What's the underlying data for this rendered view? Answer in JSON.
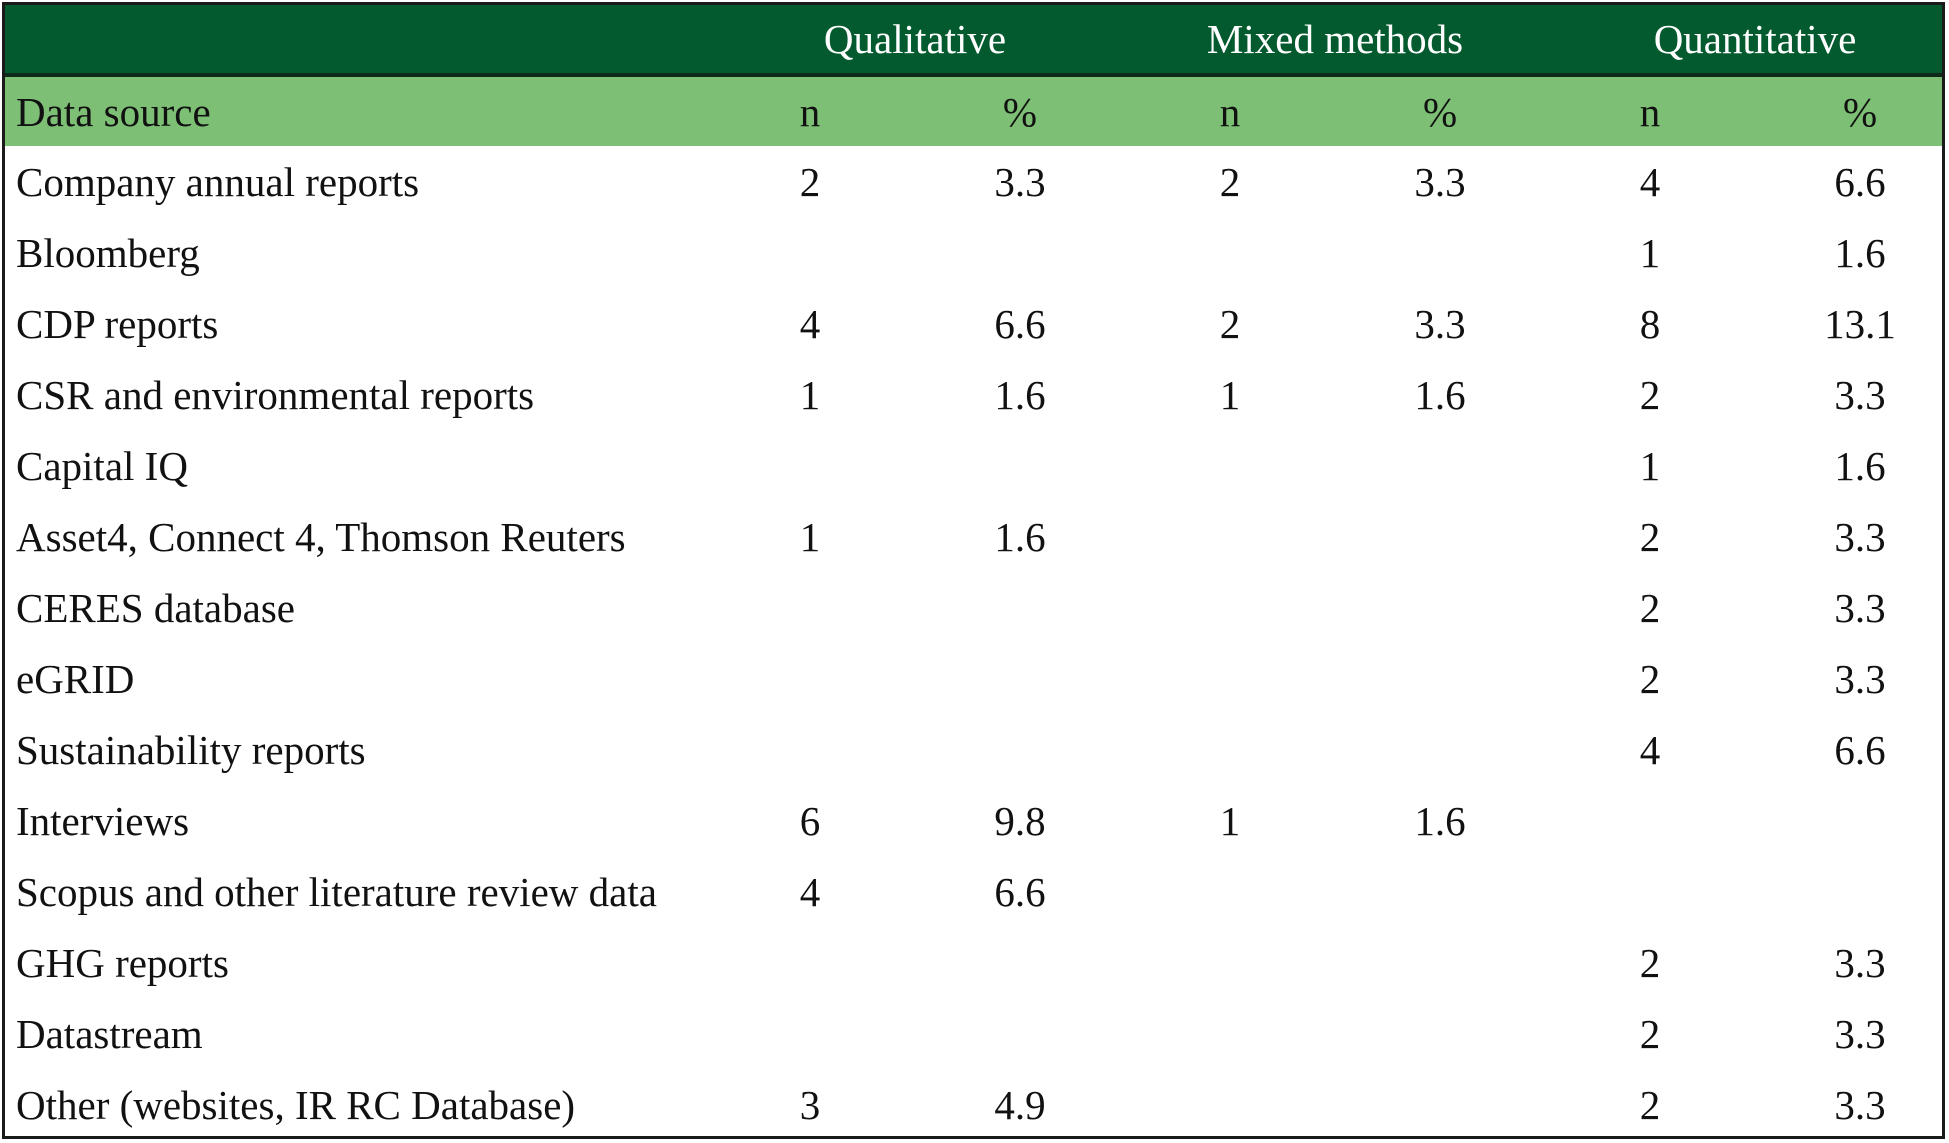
{
  "table": {
    "groups": [
      "Qualitative",
      "Mixed methods",
      "Quantitative"
    ],
    "row_header": "Data source",
    "sub_headers": [
      "n",
      "%",
      "n",
      "%",
      "n",
      "%"
    ],
    "rows": [
      {
        "source": "Company annual reports",
        "cells": [
          "2",
          "3.3",
          "2",
          "3.3",
          "4",
          "6.6"
        ]
      },
      {
        "source": "Bloomberg",
        "cells": [
          "",
          "",
          "",
          "",
          "1",
          "1.6"
        ]
      },
      {
        "source": "CDP reports",
        "cells": [
          "4",
          "6.6",
          "2",
          "3.3",
          "8",
          "13.1"
        ]
      },
      {
        "source": "CSR and environmental reports",
        "cells": [
          "1",
          "1.6",
          "1",
          "1.6",
          "2",
          "3.3"
        ]
      },
      {
        "source": "Capital IQ",
        "cells": [
          "",
          "",
          "",
          "",
          "1",
          "1.6"
        ]
      },
      {
        "source": "Asset4, Connect 4, Thomson Reuters",
        "cells": [
          "1",
          "1.6",
          "",
          "",
          "2",
          "3.3"
        ]
      },
      {
        "source": "CERES database",
        "cells": [
          "",
          "",
          "",
          "",
          "2",
          "3.3"
        ]
      },
      {
        "source": "eGRID",
        "cells": [
          "",
          "",
          "",
          "",
          "2",
          "3.3"
        ]
      },
      {
        "source": "Sustainability reports",
        "cells": [
          "",
          "",
          "",
          "",
          "4",
          "6.6"
        ]
      },
      {
        "source": "Interviews",
        "cells": [
          "6",
          "9.8",
          "1",
          "1.6",
          "",
          ""
        ]
      },
      {
        "source": "Scopus and other literature review data",
        "cells": [
          "4",
          "6.6",
          "",
          "",
          "",
          ""
        ]
      },
      {
        "source": "GHG reports",
        "cells": [
          "",
          "",
          "",
          "",
          "2",
          "3.3"
        ]
      },
      {
        "source": "Datastream",
        "cells": [
          "",
          "",
          "",
          "",
          "2",
          "3.3"
        ]
      },
      {
        "source": "Other (websites, IR RC Database)",
        "cells": [
          "3",
          "4.9",
          "",
          "",
          "2",
          "3.3"
        ]
      }
    ]
  },
  "colors": {
    "group_header_bg": "#025a2e",
    "sub_header_bg": "#7dc075"
  }
}
